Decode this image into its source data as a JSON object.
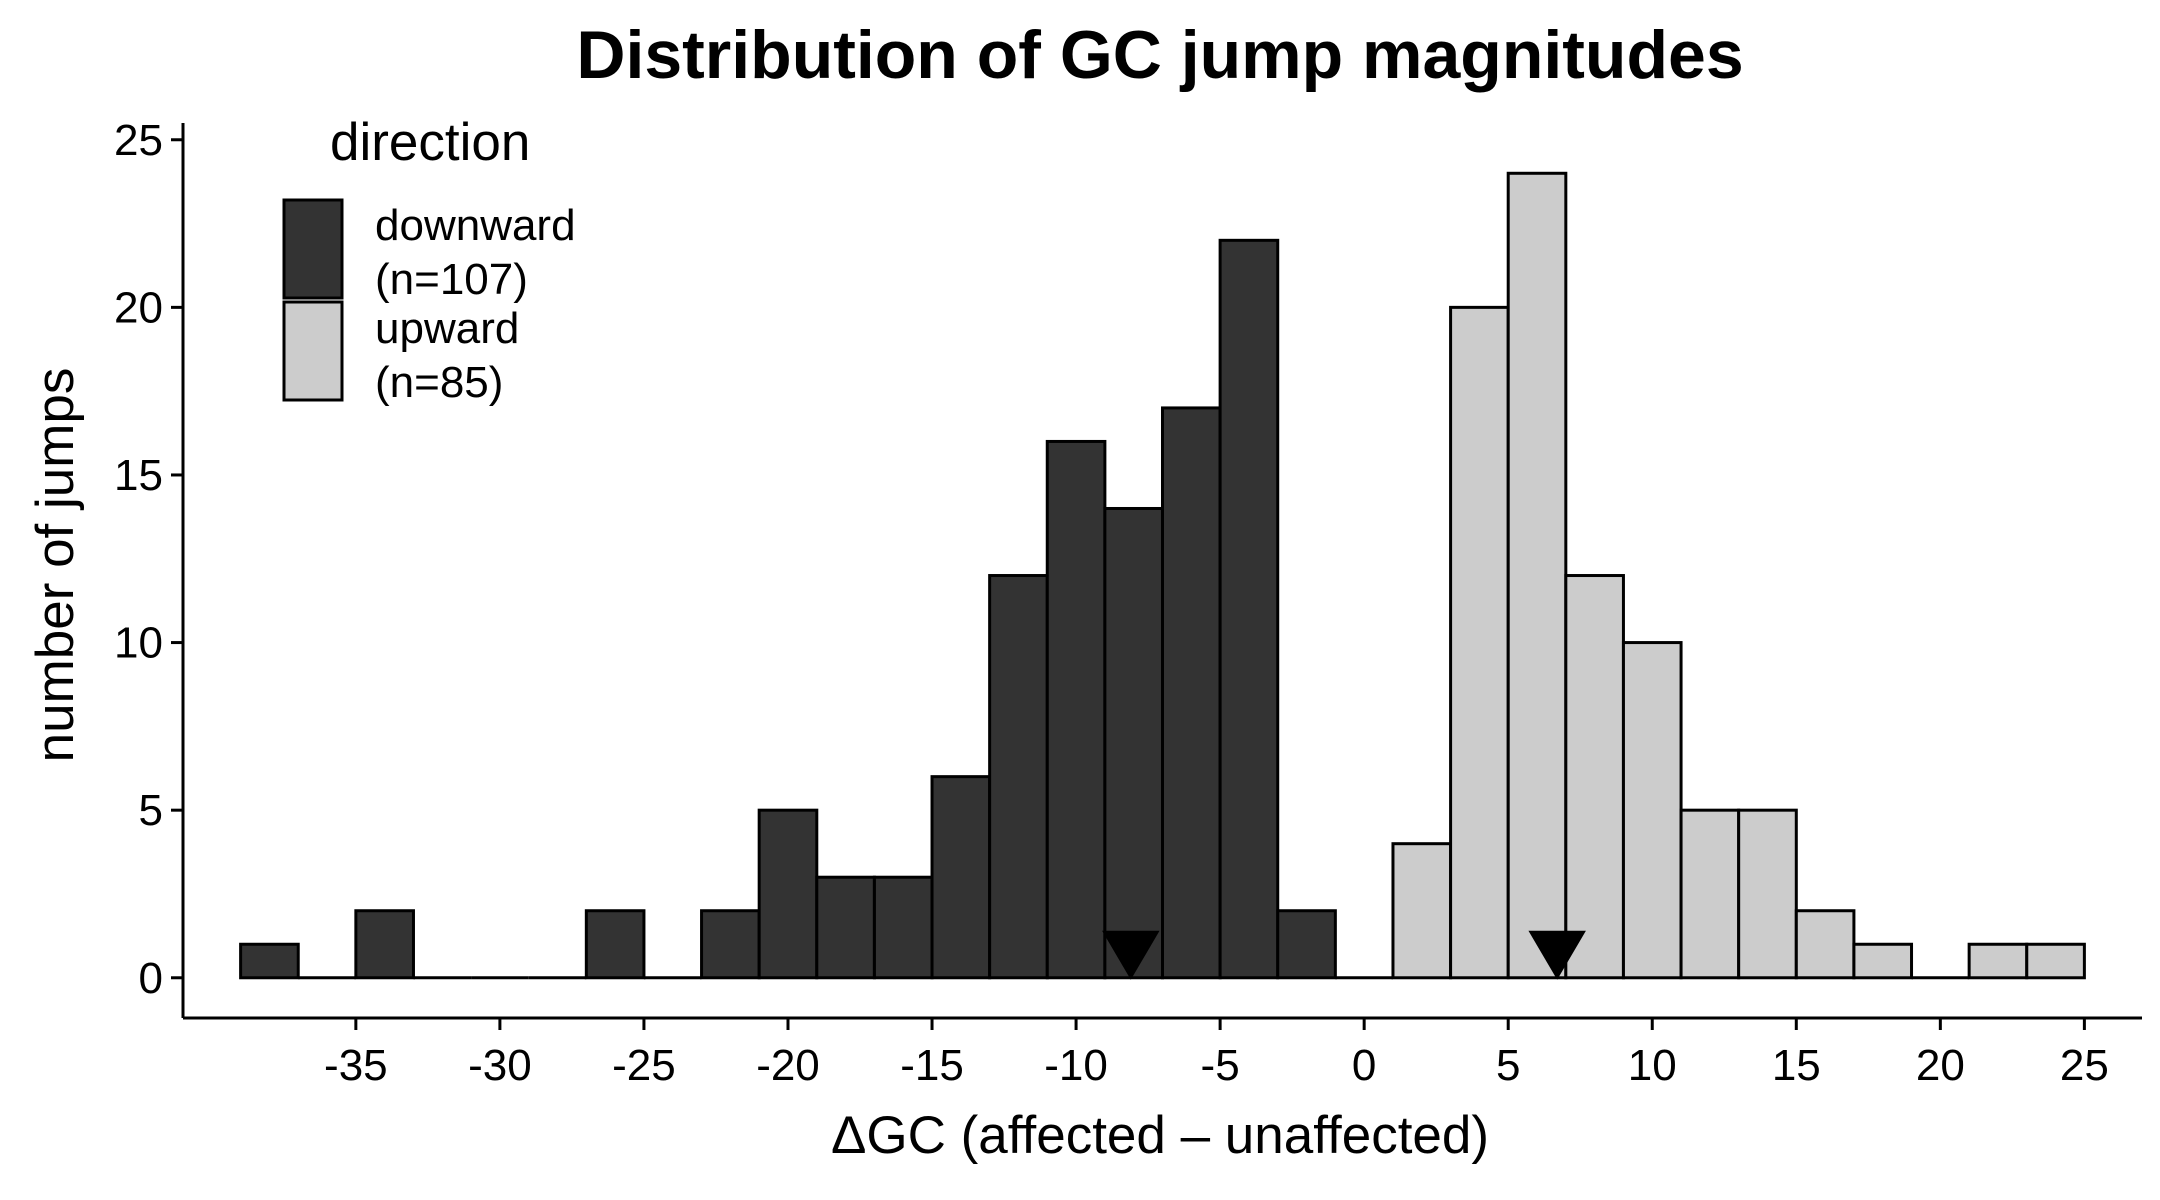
{
  "chart_data": {
    "type": "bar",
    "title": "Distribution of GC jump magnitudes",
    "xlabel": "ΔGC (affected – unaffected)",
    "ylabel": "number of jumps",
    "xlim": [
      -41,
      27
    ],
    "ylim": [
      -1.2,
      25.5
    ],
    "bin_width": 2,
    "x_ticks": [
      -35,
      -30,
      -25,
      -20,
      -15,
      -10,
      -5,
      0,
      5,
      10,
      15,
      20,
      25
    ],
    "x_tick_labels": [
      "-35",
      "-30",
      "-25",
      "-20",
      "-15",
      "-10",
      "-5",
      "0",
      "5",
      "10",
      "15",
      "20",
      "25"
    ],
    "y_ticks": [
      0,
      5,
      10,
      15,
      20,
      25
    ],
    "y_tick_labels": [
      "0",
      "5",
      "10",
      "15",
      "20",
      "25"
    ],
    "grid": false,
    "legend": {
      "title": "direction",
      "position": "top-left",
      "entries": [
        {
          "line1": "downward",
          "line2": "(n=107)",
          "color": "#333333"
        },
        {
          "line1": "upward",
          "line2": "(n=85)",
          "color": "#cccccc"
        }
      ]
    },
    "series": [
      {
        "color": "#333333",
        "bin_centers": [
          -38,
          -36,
          -34,
          -32,
          -30,
          -28,
          -26,
          -24,
          -22,
          -20,
          -18,
          -16,
          -14,
          -12,
          -10,
          -8,
          -6,
          -4,
          -2
        ],
        "values": [
          1,
          0,
          2,
          0,
          0,
          0,
          2,
          0,
          2,
          5,
          3,
          3,
          6,
          12,
          16,
          14,
          17,
          22,
          2
        ],
        "median_marker": -8.1
      },
      {
        "color": "#cccccc",
        "bin_centers": [
          0,
          2,
          4,
          6,
          8,
          10,
          12,
          14,
          16,
          18,
          20,
          22,
          24
        ],
        "values": [
          0,
          4,
          20,
          24,
          12,
          10,
          5,
          5,
          2,
          1,
          0,
          1,
          1
        ],
        "median_marker": 6.7
      }
    ]
  }
}
